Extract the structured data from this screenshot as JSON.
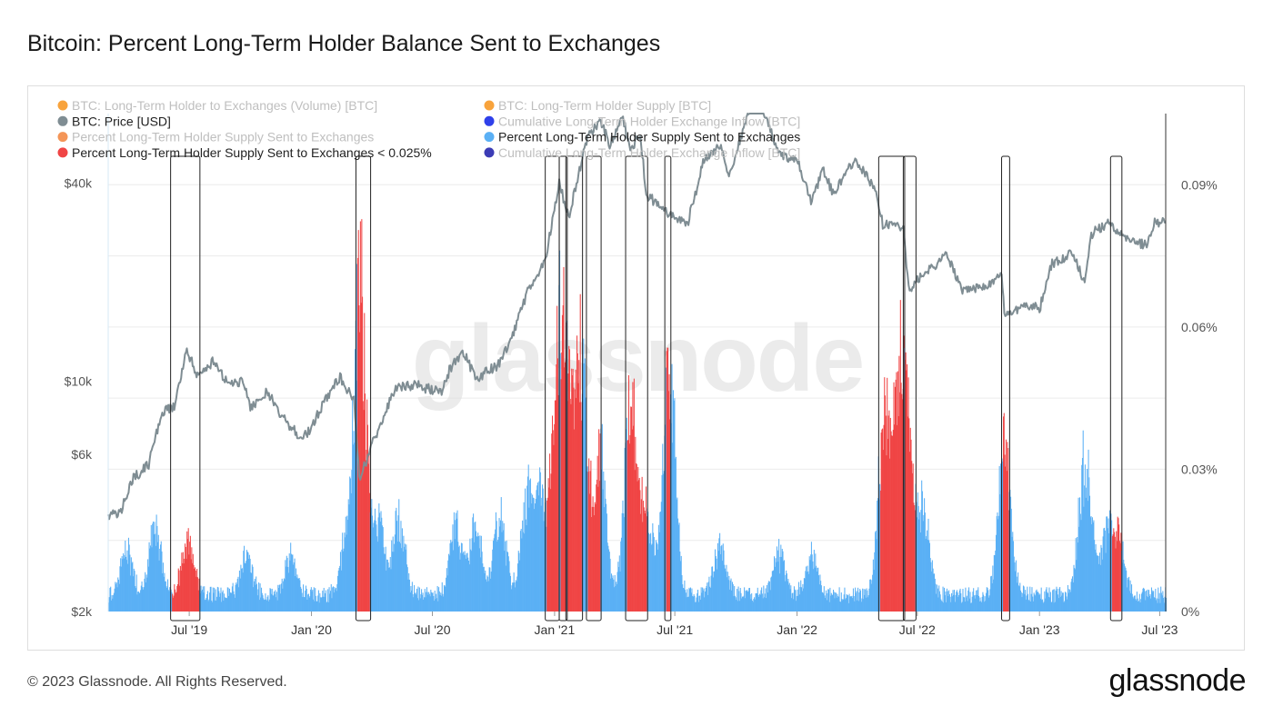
{
  "page": {
    "title": "Bitcoin: Percent Long-Term Holder Balance Sent to Exchanges",
    "copyright": "© 2023 Glassnode. All Rights Reserved.",
    "brand": "glassnode",
    "watermark": "glassnode"
  },
  "colors": {
    "price": "#7f8d93",
    "percent": "#5ab0f5",
    "highlight": "#f04545",
    "box": "#222222",
    "grid": "#ececec",
    "axis_text": "#555555"
  },
  "chart_data": {
    "type": "bar+line",
    "title": "Bitcoin: Percent Long-Term Holder Balance Sent to Exchanges",
    "x_range": [
      "2019-03-01",
      "2023-07-10"
    ],
    "x_ticks": [
      {
        "label": "Jul '19",
        "date": "2019-07-01"
      },
      {
        "label": "Jan '20",
        "date": "2020-01-01"
      },
      {
        "label": "Jul '20",
        "date": "2020-07-01"
      },
      {
        "label": "Jan '21",
        "date": "2021-01-01"
      },
      {
        "label": "Jul '21",
        "date": "2021-07-01"
      },
      {
        "label": "Jan '22",
        "date": "2022-01-01"
      },
      {
        "label": "Jul '22",
        "date": "2022-07-01"
      },
      {
        "label": "Jan '23",
        "date": "2023-01-01"
      },
      {
        "label": "Jul '23",
        "date": "2023-07-01"
      }
    ],
    "left_axis": {
      "scale": "log",
      "range_usd": [
        2000,
        65000
      ],
      "ticks": [
        {
          "label": "$2k",
          "value": 2000
        },
        {
          "label": "$6k",
          "value": 6000
        },
        {
          "label": "$10k",
          "value": 10000
        },
        {
          "label": "$40k",
          "value": 40000
        }
      ]
    },
    "right_axis": {
      "range_pct": [
        0,
        0.105
      ],
      "ticks": [
        {
          "label": "0%",
          "value": 0
        },
        {
          "label": "0.03%",
          "value": 0.03
        },
        {
          "label": "0.06%",
          "value": 0.06
        },
        {
          "label": "0.09%",
          "value": 0.09
        }
      ]
    },
    "legend": [
      {
        "label": "BTC: Long-Term Holder to Exchanges (Volume) [BTC]",
        "color": "#f7931a",
        "active": false
      },
      {
        "label": "BTC: Long-Term Holder Supply [BTC]",
        "color": "#f7931a",
        "active": false
      },
      {
        "label": "BTC: Price [USD]",
        "color": "#7f8d93",
        "active": true
      },
      {
        "label": "Cumulative Long-Term Holder Exchange Inflow [BTC]",
        "color": "#0a1ee6",
        "active": false
      },
      {
        "label": "Percent Long-Term Holder Supply Sent to Exchanges",
        "color": "#f2823a",
        "active": false
      },
      {
        "label": "Percent Long-Term Holder Supply Sent to Exchanges",
        "color": "#5ab0f5",
        "active": true
      },
      {
        "label": "Percent Long-Term Holder Supply Sent to Exchanges < 0.025%",
        "color": "#f04545",
        "active": true
      },
      {
        "label": "Cumulative Long-Term Holder Exchange Inflow [BTC]",
        "color": "#1a1aa8",
        "active": false
      }
    ],
    "price_series": [
      [
        "2019-03-01",
        3900
      ],
      [
        "2019-03-20",
        4000
      ],
      [
        "2019-04-05",
        5000
      ],
      [
        "2019-05-01",
        5600
      ],
      [
        "2019-05-20",
        8000
      ],
      [
        "2019-06-10",
        8500
      ],
      [
        "2019-06-26",
        12500
      ],
      [
        "2019-07-15",
        10300
      ],
      [
        "2019-08-05",
        11500
      ],
      [
        "2019-08-25",
        10000
      ],
      [
        "2019-09-20",
        10000
      ],
      [
        "2019-10-01",
        8300
      ],
      [
        "2019-10-26",
        9300
      ],
      [
        "2019-11-20",
        7700
      ],
      [
        "2019-12-18",
        6700
      ],
      [
        "2020-01-01",
        7200
      ],
      [
        "2020-01-20",
        8700
      ],
      [
        "2020-02-13",
        10300
      ],
      [
        "2020-03-05",
        8800
      ],
      [
        "2020-03-13",
        5000
      ],
      [
        "2020-04-01",
        6400
      ],
      [
        "2020-04-29",
        8800
      ],
      [
        "2020-05-10",
        9700
      ],
      [
        "2020-06-10",
        9700
      ],
      [
        "2020-07-15",
        9200
      ],
      [
        "2020-07-28",
        11000
      ],
      [
        "2020-08-17",
        12200
      ],
      [
        "2020-09-05",
        10200
      ],
      [
        "2020-10-10",
        11300
      ],
      [
        "2020-10-30",
        13800
      ],
      [
        "2020-11-20",
        18500
      ],
      [
        "2020-12-17",
        23000
      ],
      [
        "2021-01-08",
        40000
      ],
      [
        "2021-01-22",
        31500
      ],
      [
        "2021-02-12",
        47500
      ],
      [
        "2021-02-21",
        57000
      ],
      [
        "2021-03-13",
        61000
      ],
      [
        "2021-03-25",
        52000
      ],
      [
        "2021-04-14",
        63500
      ],
      [
        "2021-04-25",
        50000
      ],
      [
        "2021-05-10",
        57000
      ],
      [
        "2021-05-19",
        37000
      ],
      [
        "2021-06-22",
        32000
      ],
      [
        "2021-07-20",
        30000
      ],
      [
        "2021-08-14",
        47000
      ],
      [
        "2021-09-07",
        52000
      ],
      [
        "2021-09-22",
        42000
      ],
      [
        "2021-10-20",
        66000
      ],
      [
        "2021-11-10",
        67500
      ],
      [
        "2021-12-04",
        49000
      ],
      [
        "2022-01-01",
        47000
      ],
      [
        "2022-01-22",
        35000
      ],
      [
        "2022-02-10",
        44000
      ],
      [
        "2022-02-24",
        37000
      ],
      [
        "2022-03-28",
        47000
      ],
      [
        "2022-04-30",
        38500
      ],
      [
        "2022-05-10",
        30000
      ],
      [
        "2022-06-10",
        29000
      ],
      [
        "2022-06-18",
        19000
      ],
      [
        "2022-07-10",
        21000
      ],
      [
        "2022-08-14",
        24300
      ],
      [
        "2022-09-07",
        19000
      ],
      [
        "2022-10-10",
        19200
      ],
      [
        "2022-11-05",
        21000
      ],
      [
        "2022-11-09",
        16000
      ],
      [
        "2022-12-15",
        17000
      ],
      [
        "2023-01-01",
        16600
      ],
      [
        "2023-01-20",
        22800
      ],
      [
        "2023-02-20",
        24500
      ],
      [
        "2023-03-10",
        20000
      ],
      [
        "2023-03-20",
        28000
      ],
      [
        "2023-04-14",
        30400
      ],
      [
        "2023-05-10",
        27600
      ],
      [
        "2023-06-10",
        25800
      ],
      [
        "2023-06-22",
        30200
      ],
      [
        "2023-07-10",
        30300
      ]
    ],
    "percent_bars": {
      "baseline_pct": 0.0035,
      "peaks": [
        {
          "date": "2019-03-28",
          "value": 0.012
        },
        {
          "date": "2019-05-10",
          "value": 0.017
        },
        {
          "date": "2019-06-28",
          "value": 0.014
        },
        {
          "date": "2019-09-24",
          "value": 0.011
        },
        {
          "date": "2019-12-01",
          "value": 0.01
        },
        {
          "date": "2020-02-20",
          "value": 0.012
        },
        {
          "date": "2020-03-13",
          "value": 0.082
        },
        {
          "date": "2020-04-10",
          "value": 0.02
        },
        {
          "date": "2020-05-11",
          "value": 0.021
        },
        {
          "date": "2020-08-05",
          "value": 0.019
        },
        {
          "date": "2020-09-03",
          "value": 0.018
        },
        {
          "date": "2020-10-10",
          "value": 0.022
        },
        {
          "date": "2020-11-20",
          "value": 0.025
        },
        {
          "date": "2020-12-10",
          "value": 0.024
        },
        {
          "date": "2021-01-05",
          "value": 0.058
        },
        {
          "date": "2021-01-20",
          "value": 0.045
        },
        {
          "date": "2021-02-10",
          "value": 0.061
        },
        {
          "date": "2021-03-10",
          "value": 0.038
        },
        {
          "date": "2021-04-25",
          "value": 0.053
        },
        {
          "date": "2021-05-19",
          "value": 0.022
        },
        {
          "date": "2021-06-22",
          "value": 0.063
        },
        {
          "date": "2021-09-07",
          "value": 0.013
        },
        {
          "date": "2021-12-04",
          "value": 0.011
        },
        {
          "date": "2022-01-22",
          "value": 0.01
        },
        {
          "date": "2022-05-12",
          "value": 0.049
        },
        {
          "date": "2022-06-05",
          "value": 0.055
        },
        {
          "date": "2022-06-18",
          "value": 0.026
        },
        {
          "date": "2022-07-10",
          "value": 0.022
        },
        {
          "date": "2022-11-09",
          "value": 0.039
        },
        {
          "date": "2023-03-10",
          "value": 0.037
        },
        {
          "date": "2023-04-10",
          "value": 0.015
        },
        {
          "date": "2023-04-28",
          "value": 0.016
        }
      ]
    },
    "highlight_windows": [
      {
        "start": "2019-06-05",
        "end": "2019-07-15"
      },
      {
        "start": "2020-03-10",
        "end": "2020-03-28"
      },
      {
        "start": "2020-12-20",
        "end": "2021-01-06"
      },
      {
        "start": "2021-01-10",
        "end": "2021-01-18"
      },
      {
        "start": "2021-01-20",
        "end": "2021-02-10"
      },
      {
        "start": "2021-02-20",
        "end": "2021-03-10"
      },
      {
        "start": "2021-04-20",
        "end": "2021-05-19"
      },
      {
        "start": "2021-06-18",
        "end": "2021-06-23"
      },
      {
        "start": "2022-05-06",
        "end": "2022-06-10"
      },
      {
        "start": "2022-06-12",
        "end": "2022-06-27"
      },
      {
        "start": "2022-11-07",
        "end": "2022-11-15"
      },
      {
        "start": "2023-04-20",
        "end": "2023-05-03"
      }
    ]
  }
}
